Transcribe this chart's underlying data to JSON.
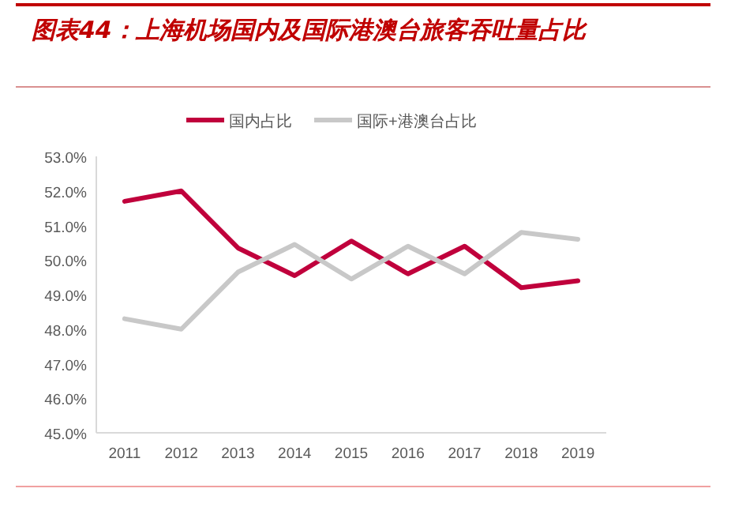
{
  "chart_data": {
    "type": "line",
    "title": "图表44：上海机场国内及国际港澳台旅客吞吐量占比",
    "categories": [
      "2011",
      "2012",
      "2013",
      "2014",
      "2015",
      "2016",
      "2017",
      "2018",
      "2019"
    ],
    "series": [
      {
        "name": "国内占比",
        "color": "#c0003c",
        "values": [
          51.7,
          52.0,
          50.35,
          49.55,
          50.55,
          49.6,
          50.4,
          49.2,
          49.4
        ]
      },
      {
        "name": "国际+港澳台占比",
        "color": "#c8c8c8",
        "values": [
          48.3,
          48.0,
          49.65,
          50.45,
          49.45,
          50.4,
          49.6,
          50.8,
          50.6
        ]
      }
    ],
    "ylim": [
      45,
      53
    ],
    "yticks": [
      {
        "value": 45,
        "label": "45.0%"
      },
      {
        "value": 46,
        "label": "46.0%"
      },
      {
        "value": 47,
        "label": "47.0%"
      },
      {
        "value": 48,
        "label": "48.0%"
      },
      {
        "value": 49,
        "label": "49.0%"
      },
      {
        "value": 50,
        "label": "50.0%"
      },
      {
        "value": 51,
        "label": "51.0%"
      },
      {
        "value": 52,
        "label": "52.0%"
      },
      {
        "value": 53,
        "label": "53.0%"
      }
    ],
    "grid": false,
    "legend": "top",
    "marker": "none",
    "line_style": "solid"
  }
}
